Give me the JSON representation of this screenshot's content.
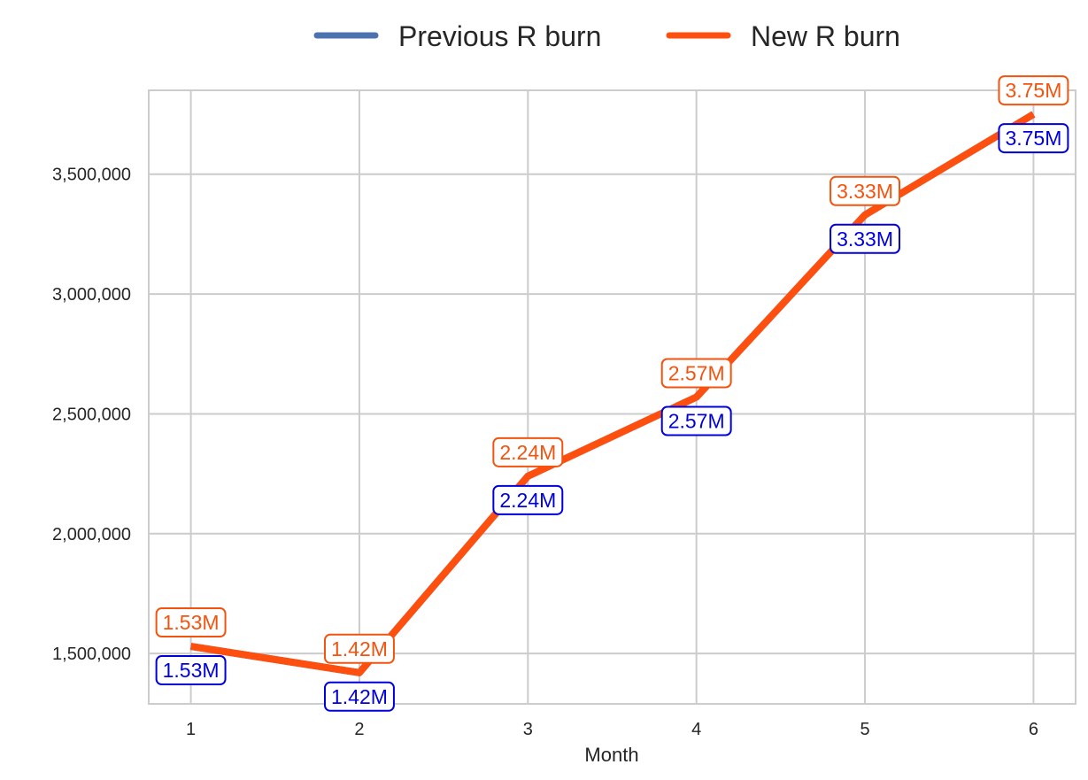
{
  "chart_data": {
    "type": "line",
    "title": "",
    "xlabel": "Month",
    "ylabel": "",
    "x": [
      1,
      2,
      3,
      4,
      5,
      6
    ],
    "xticks": [
      "1",
      "2",
      "3",
      "4",
      "5",
      "6"
    ],
    "xlim": [
      0.75,
      6.25
    ],
    "ylim": [
      1290000,
      3850000
    ],
    "yticks": [
      1500000,
      2000000,
      2500000,
      3000000,
      3500000
    ],
    "ytick_labels": [
      "1,500,000",
      "2,000,000",
      "2,500,000",
      "3,000,000",
      "3,500,000"
    ],
    "grid": true,
    "legend": "top-center, outside plot",
    "series": [
      {
        "name": "Previous R burn",
        "color": "#4c72b0",
        "label_color": "#0000dd",
        "values": [
          1530000,
          1420000,
          2240000,
          2570000,
          3330000,
          3750000
        ],
        "labels": [
          "1.53M",
          "1.42M",
          "2.24M",
          "2.57M",
          "3.33M",
          "3.75M"
        ]
      },
      {
        "name": "New R burn",
        "color": "#ff4f0f",
        "label_color": "#f2540f",
        "values": [
          1530000,
          1420000,
          2240000,
          2570000,
          3330000,
          3750000
        ],
        "labels": [
          "1.53M",
          "1.42M",
          "2.24M",
          "2.57M",
          "3.33M",
          "3.75M"
        ]
      }
    ]
  }
}
